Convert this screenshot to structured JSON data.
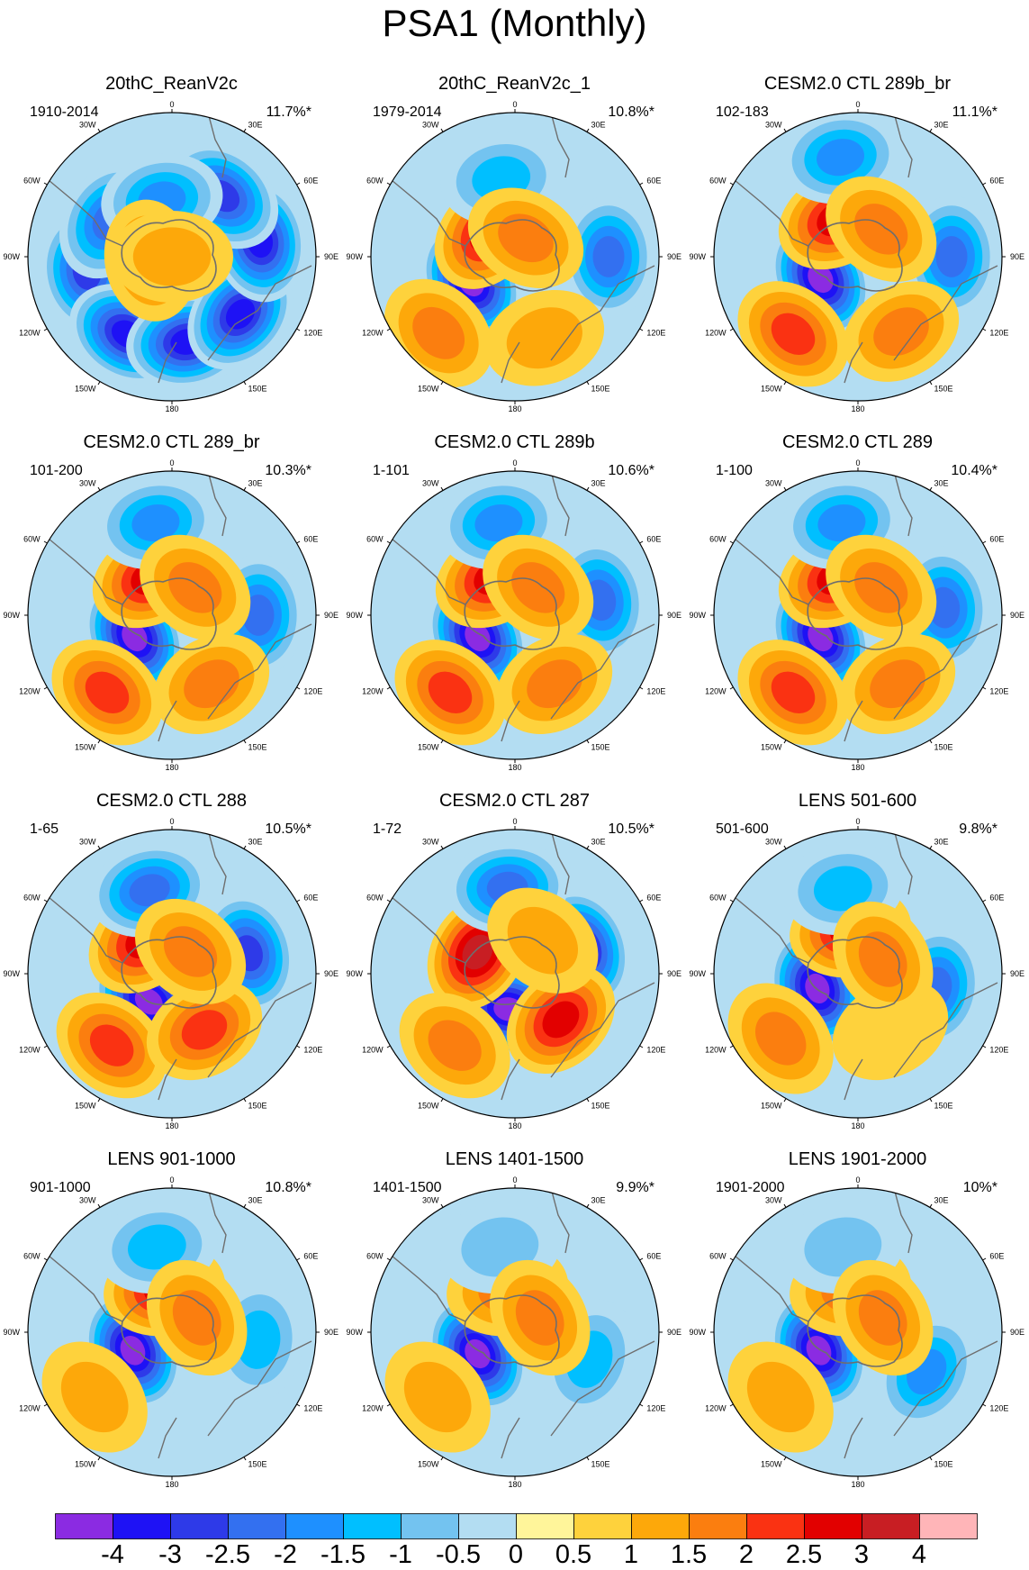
{
  "title": "PSA1 (Monthly)",
  "lon_labels": [
    "0",
    "30E",
    "60E",
    "90E",
    "120E",
    "150E",
    "180",
    "150W",
    "120W",
    "90W",
    "60W",
    "30W"
  ],
  "panels": [
    {
      "title": "20thC_ReanV2c",
      "period": "1910-2014",
      "variance": "11.7%*",
      "blobs": [
        {
          "lon": -130,
          "r": 0.55,
          "v": -3
        },
        {
          "lon": -100,
          "r": 0.6,
          "v": -2.5
        },
        {
          "lon": -150,
          "r": 0.62,
          "v": -3
        },
        {
          "lon": 170,
          "r": 0.6,
          "v": -3.5
        },
        {
          "lon": 130,
          "r": 0.62,
          "v": -3
        },
        {
          "lon": 80,
          "r": 0.62,
          "v": -3
        },
        {
          "lon": 40,
          "r": 0.55,
          "v": -2.5
        },
        {
          "lon": -60,
          "r": 0.5,
          "v": -2
        },
        {
          "lon": -10,
          "r": 0.4,
          "v": -1.5
        },
        {
          "lon": -100,
          "r": 0.15,
          "v": 1.5
        },
        {
          "lon": 0,
          "r": 0.0,
          "v": 1
        }
      ]
    },
    {
      "title": "20thC_ReanV2c_1",
      "period": "1979-2014",
      "variance": "10.8%*",
      "blobs": [
        {
          "lon": -120,
          "r": 0.35,
          "v": -4
        },
        {
          "lon": -50,
          "r": 0.25,
          "v": 2.5
        },
        {
          "lon": -135,
          "r": 0.75,
          "v": 1.5
        },
        {
          "lon": 90,
          "r": 0.65,
          "v": -2
        },
        {
          "lon": 160,
          "r": 0.6,
          "v": 1
        },
        {
          "lon": -10,
          "r": 0.55,
          "v": -1
        },
        {
          "lon": 30,
          "r": 0.15,
          "v": 1.5
        }
      ]
    },
    {
      "title": "CESM2.0 CTL 289b_br",
      "period": "102-183",
      "variance": "11.1%*",
      "blobs": [
        {
          "lon": -120,
          "r": 0.3,
          "v": -4
        },
        {
          "lon": -30,
          "r": 0.3,
          "v": 2.5
        },
        {
          "lon": -140,
          "r": 0.7,
          "v": 2
        },
        {
          "lon": 90,
          "r": 0.65,
          "v": -2
        },
        {
          "lon": -10,
          "r": 0.7,
          "v": -1.5
        },
        {
          "lon": 150,
          "r": 0.6,
          "v": 1.5
        },
        {
          "lon": 40,
          "r": 0.25,
          "v": 1.5
        }
      ]
    },
    {
      "title": "CESM2.0 CTL 289_br",
      "period": "101-200",
      "variance": "10.3%*",
      "blobs": [
        {
          "lon": -120,
          "r": 0.3,
          "v": -4
        },
        {
          "lon": -30,
          "r": 0.3,
          "v": 2.5
        },
        {
          "lon": -140,
          "r": 0.7,
          "v": 2
        },
        {
          "lon": 90,
          "r": 0.6,
          "v": -2
        },
        {
          "lon": -10,
          "r": 0.65,
          "v": -1.5
        },
        {
          "lon": 150,
          "r": 0.55,
          "v": 1.5
        },
        {
          "lon": 40,
          "r": 0.25,
          "v": 1.5
        }
      ]
    },
    {
      "title": "CESM2.0 CTL 289b",
      "period": "1-101",
      "variance": "10.6%*",
      "blobs": [
        {
          "lon": -120,
          "r": 0.3,
          "v": -4
        },
        {
          "lon": -30,
          "r": 0.3,
          "v": 2.5
        },
        {
          "lon": -140,
          "r": 0.7,
          "v": 2
        },
        {
          "lon": 80,
          "r": 0.6,
          "v": -2
        },
        {
          "lon": -10,
          "r": 0.65,
          "v": -1.5
        },
        {
          "lon": 150,
          "r": 0.55,
          "v": 1.5
        },
        {
          "lon": 40,
          "r": 0.25,
          "v": 1.5
        }
      ]
    },
    {
      "title": "CESM2.0 CTL 289",
      "period": "1-100",
      "variance": "10.4%*",
      "blobs": [
        {
          "lon": -120,
          "r": 0.3,
          "v": -4
        },
        {
          "lon": -30,
          "r": 0.3,
          "v": 2.5
        },
        {
          "lon": -140,
          "r": 0.7,
          "v": 2
        },
        {
          "lon": 85,
          "r": 0.6,
          "v": -2
        },
        {
          "lon": -10,
          "r": 0.65,
          "v": -1.5
        },
        {
          "lon": 150,
          "r": 0.55,
          "v": 1.5
        },
        {
          "lon": 40,
          "r": 0.25,
          "v": 1.5
        }
      ]
    },
    {
      "title": "CESM2.0 CTL 288",
      "period": "1-65",
      "variance": "10.5%*",
      "blobs": [
        {
          "lon": -140,
          "r": 0.25,
          "v": -4
        },
        {
          "lon": -40,
          "r": 0.3,
          "v": 2.5
        },
        {
          "lon": -140,
          "r": 0.65,
          "v": 2
        },
        {
          "lon": 75,
          "r": 0.55,
          "v": -2.5
        },
        {
          "lon": -15,
          "r": 0.6,
          "v": -2
        },
        {
          "lon": 150,
          "r": 0.45,
          "v": 2
        },
        {
          "lon": 40,
          "r": 0.2,
          "v": 1.5
        }
      ]
    },
    {
      "title": "CESM2.0 CTL 287",
      "period": "1-72",
      "variance": "10.5%*",
      "blobs": [
        {
          "lon": -170,
          "r": 0.25,
          "v": -4
        },
        {
          "lon": -60,
          "r": 0.3,
          "v": 3
        },
        {
          "lon": -140,
          "r": 0.65,
          "v": 1.5
        },
        {
          "lon": 70,
          "r": 0.5,
          "v": -3
        },
        {
          "lon": -5,
          "r": 0.6,
          "v": -2
        },
        {
          "lon": 135,
          "r": 0.45,
          "v": 2.5
        },
        {
          "lon": 40,
          "r": 0.3,
          "v": 1
        }
      ]
    },
    {
      "title": "LENS 501-600",
      "period": "501-600",
      "variance": "9.8%*",
      "blobs": [
        {
          "lon": -110,
          "r": 0.3,
          "v": -4
        },
        {
          "lon": -10,
          "r": 0.3,
          "v": 2.5
        },
        {
          "lon": -130,
          "r": 0.7,
          "v": 1.5
        },
        {
          "lon": 100,
          "r": 0.55,
          "v": -2
        },
        {
          "lon": -10,
          "r": 0.6,
          "v": -1
        },
        {
          "lon": 150,
          "r": 0.45,
          "v": 0.5
        },
        {
          "lon": 60,
          "r": 0.2,
          "v": 1.5
        }
      ]
    },
    {
      "title": "LENS 901-1000",
      "period": "901-1000",
      "variance": "10.8%*",
      "blobs": [
        {
          "lon": -115,
          "r": 0.3,
          "v": -4
        },
        {
          "lon": -10,
          "r": 0.3,
          "v": 2.5
        },
        {
          "lon": -130,
          "r": 0.7,
          "v": 1
        },
        {
          "lon": 95,
          "r": 0.6,
          "v": -1
        },
        {
          "lon": -10,
          "r": 0.6,
          "v": -1
        },
        {
          "lon": 60,
          "r": 0.2,
          "v": 1.5
        }
      ]
    },
    {
      "title": "LENS 1401-1500",
      "period": "1401-1500",
      "variance": "9.9%*",
      "blobs": [
        {
          "lon": -120,
          "r": 0.3,
          "v": -4
        },
        {
          "lon": -10,
          "r": 0.3,
          "v": 1.5
        },
        {
          "lon": -130,
          "r": 0.7,
          "v": 1
        },
        {
          "lon": 110,
          "r": 0.55,
          "v": -1
        },
        {
          "lon": -10,
          "r": 0.6,
          "v": -0.5
        },
        {
          "lon": 60,
          "r": 0.2,
          "v": 1.5
        }
      ]
    },
    {
      "title": "LENS 1901-2000",
      "period": "1901-2000",
      "variance": "10%*",
      "blobs": [
        {
          "lon": -115,
          "r": 0.3,
          "v": -4
        },
        {
          "lon": -10,
          "r": 0.3,
          "v": 1.5
        },
        {
          "lon": -130,
          "r": 0.7,
          "v": 1
        },
        {
          "lon": 120,
          "r": 0.55,
          "v": -1.5
        },
        {
          "lon": -10,
          "r": 0.6,
          "v": -0.5
        },
        {
          "lon": 60,
          "r": 0.2,
          "v": 1.5
        }
      ]
    }
  ],
  "colorbar": {
    "labels": [
      "-4",
      "-3",
      "-2.5",
      "-2",
      "-1.5",
      "-1",
      "-0.5",
      "0",
      "0.5",
      "1",
      "1.5",
      "2",
      "2.5",
      "3",
      "4"
    ],
    "colors": [
      "#8b2be2",
      "#1e12f5",
      "#2e3ae8",
      "#3370f0",
      "#1e90ff",
      "#00bfff",
      "#73c3f0",
      "#b3ddf2",
      "#fff59a",
      "#fed23c",
      "#fda80a",
      "#fb7e0f",
      "#fa3212",
      "#e20000",
      "#c81e23",
      "#ffb5b8"
    ]
  },
  "contour_levels": [
    -4,
    -3,
    -2.5,
    -2,
    -1.5,
    -1,
    -0.5,
    0,
    0.5,
    1,
    1.5,
    2,
    2.5,
    3,
    4
  ]
}
